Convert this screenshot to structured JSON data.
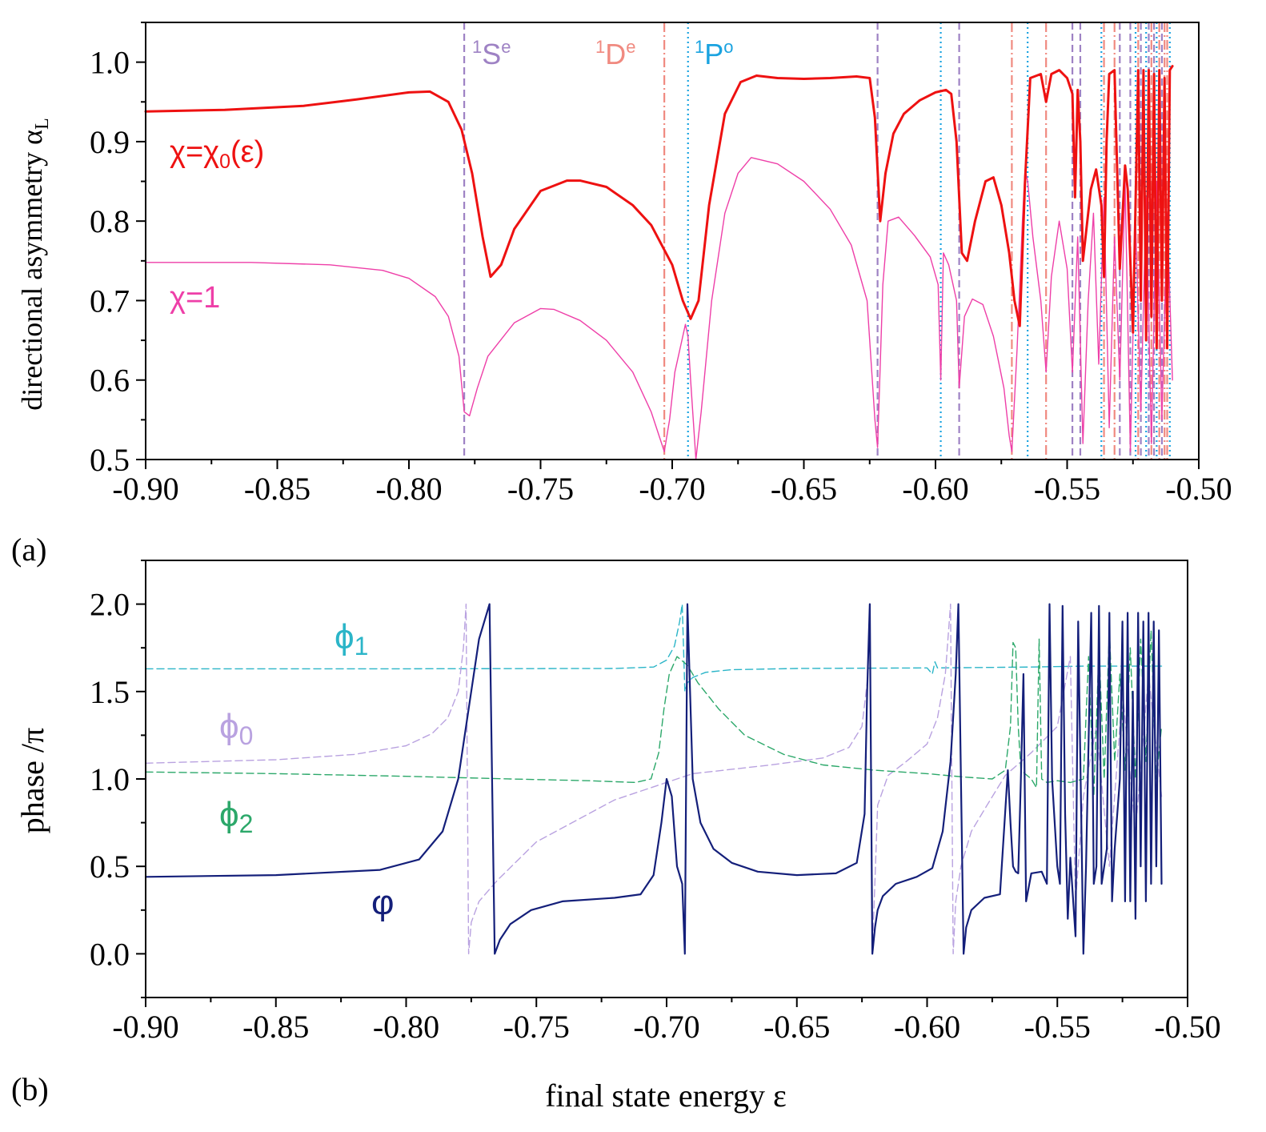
{
  "chart_data": [
    {
      "type": "line",
      "panel_label": "(a)",
      "ylabel": "directional asymmetry α",
      "ylabel_sub": "L",
      "xlabel": "",
      "xlim": [
        -0.9,
        -0.5
      ],
      "ylim": [
        0.5,
        1.05
      ],
      "xticks": [
        "-0.90",
        "-0.85",
        "-0.80",
        "-0.75",
        "-0.70",
        "-0.65",
        "-0.60",
        "-0.55",
        "-0.50"
      ],
      "yticks": [
        "0.5",
        "0.6",
        "0.7",
        "0.8",
        "0.9",
        "1.0"
      ],
      "xtick_values": [
        -0.9,
        -0.85,
        -0.8,
        -0.75,
        -0.7,
        -0.65,
        -0.6,
        -0.55,
        -0.5
      ],
      "ytick_values": [
        0.5,
        0.6,
        0.7,
        0.8,
        0.9,
        1.0
      ],
      "state_labels": [
        {
          "text": "S",
          "sup_left": "1",
          "sup_right": "e",
          "color": "#9e82c4"
        },
        {
          "text": "D",
          "sup_left": "1",
          "sup_right": "e",
          "color": "#f08a80"
        },
        {
          "text": "P",
          "sup_left": "1",
          "sup_right": "o",
          "color": "#1aa3e0"
        }
      ],
      "resonance_lines": {
        "S": {
          "color": "#9e82c4",
          "dash": "dashed",
          "x": [
            -0.779,
            -0.622,
            -0.591,
            -0.548,
            -0.545,
            -0.53,
            -0.526,
            -0.522,
            -0.519,
            -0.517,
            -0.514
          ]
        },
        "D": {
          "color": "#f08a80",
          "dash": "dashdot",
          "x": [
            -0.703,
            -0.571,
            -0.558,
            -0.536,
            -0.532,
            -0.523,
            -0.518,
            -0.515,
            -0.513,
            -0.512
          ]
        },
        "P": {
          "color": "#1aa3e0",
          "dash": "dotted",
          "x": [
            -0.694,
            -0.598,
            -0.565,
            -0.537,
            -0.524,
            -0.52,
            -0.516,
            -0.511
          ]
        }
      },
      "series": [
        {
          "name": "χ=χ₀(ε)",
          "label_text": "χ=χ",
          "label_sub": "0",
          "label_tail": "(ε)",
          "color": "#ee1111",
          "width": 3,
          "x": [
            -0.9,
            -0.87,
            -0.84,
            -0.82,
            -0.8,
            -0.792,
            -0.785,
            -0.78,
            -0.776,
            -0.772,
            -0.769,
            -0.765,
            -0.76,
            -0.75,
            -0.74,
            -0.735,
            -0.725,
            -0.715,
            -0.708,
            -0.7,
            -0.696,
            -0.693,
            -0.69,
            -0.686,
            -0.68,
            -0.674,
            -0.668,
            -0.66,
            -0.65,
            -0.64,
            -0.63,
            -0.625,
            -0.623,
            -0.621,
            -0.619,
            -0.616,
            -0.612,
            -0.606,
            -0.6,
            -0.596,
            -0.594,
            -0.592,
            -0.59,
            -0.588,
            -0.585,
            -0.581,
            -0.578,
            -0.575,
            -0.572,
            -0.57,
            -0.568,
            -0.566,
            -0.564,
            -0.56,
            -0.558,
            -0.556,
            -0.553,
            -0.55,
            -0.548,
            -0.547,
            -0.546,
            -0.545,
            -0.544,
            -0.541,
            -0.539,
            -0.537,
            -0.536,
            -0.535,
            -0.534,
            -0.532,
            -0.53,
            -0.528,
            -0.527,
            -0.525,
            -0.523,
            -0.522,
            -0.521,
            -0.52,
            -0.519,
            -0.518,
            -0.517,
            -0.516,
            -0.515,
            -0.514,
            -0.513,
            -0.512,
            -0.511,
            -0.51
          ],
          "values": [
            0.938,
            0.94,
            0.945,
            0.953,
            0.962,
            0.963,
            0.95,
            0.915,
            0.86,
            0.78,
            0.73,
            0.745,
            0.79,
            0.838,
            0.851,
            0.851,
            0.843,
            0.82,
            0.795,
            0.745,
            0.7,
            0.677,
            0.7,
            0.82,
            0.935,
            0.975,
            0.983,
            0.98,
            0.979,
            0.98,
            0.982,
            0.98,
            0.93,
            0.8,
            0.86,
            0.91,
            0.935,
            0.952,
            0.962,
            0.965,
            0.96,
            0.9,
            0.76,
            0.75,
            0.8,
            0.85,
            0.855,
            0.82,
            0.76,
            0.7,
            0.668,
            0.85,
            0.98,
            0.985,
            0.95,
            0.985,
            0.99,
            0.98,
            0.96,
            0.83,
            0.965,
            0.9,
            0.75,
            0.84,
            0.865,
            0.82,
            0.73,
            0.9,
            0.985,
            0.99,
            0.74,
            0.87,
            0.84,
            0.66,
            0.99,
            0.7,
            0.99,
            0.65,
            0.99,
            0.68,
            0.985,
            0.64,
            0.99,
            0.7,
            0.98,
            0.64,
            0.99,
            0.995
          ]
        },
        {
          "name": "χ=1",
          "label_text": "χ=1",
          "color": "#ee3fa8",
          "width": 1.4,
          "x": [
            -0.9,
            -0.86,
            -0.83,
            -0.81,
            -0.8,
            -0.79,
            -0.785,
            -0.781,
            -0.779,
            -0.777,
            -0.774,
            -0.77,
            -0.76,
            -0.75,
            -0.745,
            -0.735,
            -0.725,
            -0.715,
            -0.708,
            -0.703,
            -0.701,
            -0.699,
            -0.697,
            -0.695,
            -0.694,
            -0.693,
            -0.691,
            -0.689,
            -0.685,
            -0.68,
            -0.675,
            -0.67,
            -0.66,
            -0.65,
            -0.64,
            -0.632,
            -0.626,
            -0.623,
            -0.622,
            -0.62,
            -0.618,
            -0.614,
            -0.608,
            -0.602,
            -0.599,
            -0.598,
            -0.597,
            -0.595,
            -0.592,
            -0.591,
            -0.589,
            -0.586,
            -0.582,
            -0.578,
            -0.574,
            -0.572,
            -0.571,
            -0.569,
            -0.567,
            -0.566,
            -0.565,
            -0.563,
            -0.56,
            -0.558,
            -0.556,
            -0.553,
            -0.55,
            -0.548,
            -0.546,
            -0.544,
            -0.542,
            -0.54,
            -0.538,
            -0.536,
            -0.534,
            -0.532,
            -0.53,
            -0.528,
            -0.526,
            -0.524,
            -0.522,
            -0.52,
            -0.518,
            -0.516,
            -0.514,
            -0.512,
            -0.51
          ],
          "values": [
            0.748,
            0.748,
            0.745,
            0.738,
            0.728,
            0.705,
            0.68,
            0.63,
            0.56,
            0.555,
            0.59,
            0.63,
            0.672,
            0.69,
            0.689,
            0.675,
            0.65,
            0.61,
            0.56,
            0.51,
            0.55,
            0.61,
            0.64,
            0.67,
            0.655,
            0.6,
            0.5,
            0.56,
            0.7,
            0.81,
            0.86,
            0.88,
            0.872,
            0.85,
            0.815,
            0.77,
            0.7,
            0.55,
            0.515,
            0.72,
            0.8,
            0.805,
            0.782,
            0.755,
            0.72,
            0.6,
            0.76,
            0.745,
            0.7,
            0.59,
            0.68,
            0.702,
            0.695,
            0.655,
            0.59,
            0.53,
            0.51,
            0.64,
            0.8,
            0.865,
            0.85,
            0.78,
            0.7,
            0.61,
            0.73,
            0.8,
            0.74,
            0.61,
            0.78,
            0.52,
            0.7,
            0.81,
            0.62,
            0.83,
            0.54,
            0.78,
            0.6,
            0.85,
            0.51,
            0.8,
            0.56,
            0.83,
            0.52,
            0.85,
            0.55,
            0.81,
            0.6
          ]
        }
      ]
    },
    {
      "type": "line",
      "panel_label": "(b)",
      "ylabel": "phase /π",
      "xlabel": "final state energy ε",
      "xlim": [
        -0.9,
        -0.5
      ],
      "ylim": [
        -0.25,
        2.25
      ],
      "xticks": [
        "-0.90",
        "-0.85",
        "-0.80",
        "-0.75",
        "-0.70",
        "-0.65",
        "-0.60",
        "-0.55",
        "-0.50"
      ],
      "yticks": [
        "0.0",
        "0.5",
        "1.0",
        "1.5",
        "2.0"
      ],
      "xtick_values": [
        -0.9,
        -0.85,
        -0.8,
        -0.75,
        -0.7,
        -0.65,
        -0.6,
        -0.55,
        -0.5
      ],
      "ytick_values": [
        0.0,
        0.5,
        1.0,
        1.5,
        2.0
      ],
      "series": [
        {
          "name": "ϕ₁",
          "label_text": "ϕ",
          "label_sub": "1",
          "color": "#2bb5c8",
          "width": 1.4,
          "dash": "dashed",
          "x": [
            -0.9,
            -0.8,
            -0.72,
            -0.705,
            -0.7,
            -0.697,
            -0.695,
            -0.694,
            -0.693,
            -0.692,
            -0.69,
            -0.685,
            -0.675,
            -0.65,
            -0.6,
            -0.598,
            -0.597,
            -0.596,
            -0.56,
            -0.54,
            -0.52,
            -0.51
          ],
          "values": [
            1.63,
            1.63,
            1.632,
            1.64,
            1.68,
            1.76,
            1.9,
            2.0,
            1.5,
            1.55,
            1.58,
            1.61,
            1.625,
            1.632,
            1.635,
            1.6,
            1.67,
            1.635,
            1.64,
            1.645,
            1.645,
            1.645
          ]
        },
        {
          "name": "ϕ₀",
          "label_text": "ϕ",
          "label_sub": "0",
          "color": "#b9a2e0",
          "width": 1.4,
          "dash": "dashed",
          "x": [
            -0.9,
            -0.85,
            -0.82,
            -0.8,
            -0.79,
            -0.784,
            -0.78,
            -0.778,
            -0.777,
            -0.776,
            -0.775,
            -0.772,
            -0.765,
            -0.75,
            -0.72,
            -0.69,
            -0.66,
            -0.64,
            -0.63,
            -0.625,
            -0.623,
            -0.622,
            -0.621,
            -0.619,
            -0.615,
            -0.608,
            -0.6,
            -0.596,
            -0.593,
            -0.591,
            -0.59,
            -0.589,
            -0.587,
            -0.583,
            -0.577,
            -0.57,
            -0.56,
            -0.55,
            -0.545,
            -0.543,
            -0.54,
            -0.535,
            -0.53,
            -0.525,
            -0.52,
            -0.515,
            -0.51
          ],
          "values": [
            1.09,
            1.11,
            1.14,
            1.19,
            1.26,
            1.35,
            1.5,
            1.75,
            2.0,
            0.0,
            0.18,
            0.3,
            0.42,
            0.64,
            0.88,
            1.03,
            1.08,
            1.12,
            1.18,
            1.3,
            1.55,
            1.95,
            0.0,
            0.85,
            1.02,
            1.1,
            1.2,
            1.35,
            1.6,
            2.0,
            0.0,
            0.3,
            0.5,
            0.7,
            0.85,
            1.02,
            1.15,
            1.3,
            1.7,
            0.3,
            0.9,
            1.3,
            0.5,
            1.5,
            0.7,
            1.6,
            0.9
          ]
        },
        {
          "name": "ϕ₂",
          "label_text": "ϕ",
          "label_sub": "2",
          "color": "#2ca86a",
          "width": 1.4,
          "dash": "dashed",
          "x": [
            -0.9,
            -0.85,
            -0.8,
            -0.76,
            -0.73,
            -0.712,
            -0.706,
            -0.703,
            -0.701,
            -0.699,
            -0.696,
            -0.692,
            -0.688,
            -0.68,
            -0.67,
            -0.655,
            -0.64,
            -0.62,
            -0.6,
            -0.585,
            -0.575,
            -0.57,
            -0.568,
            -0.567,
            -0.566,
            -0.565,
            -0.564,
            -0.56,
            -0.558,
            -0.557,
            -0.556,
            -0.554,
            -0.55,
            -0.545,
            -0.54,
            -0.538,
            -0.536,
            -0.534,
            -0.532,
            -0.53,
            -0.528,
            -0.526,
            -0.524,
            -0.522,
            -0.52,
            -0.518,
            -0.516,
            -0.514,
            -0.512,
            -0.51
          ],
          "values": [
            1.04,
            1.03,
            1.015,
            1.0,
            0.99,
            0.98,
            1.0,
            1.15,
            1.4,
            1.6,
            1.7,
            1.65,
            1.55,
            1.4,
            1.25,
            1.14,
            1.08,
            1.05,
            1.03,
            1.01,
            1.0,
            1.05,
            1.3,
            1.78,
            1.75,
            1.3,
            1.05,
            1.0,
            0.95,
            1.8,
            1.0,
            0.98,
            0.99,
            0.98,
            1.0,
            1.7,
            0.9,
            1.75,
            1.0,
            1.85,
            1.1,
            1.6,
            1.05,
            1.75,
            1.0,
            1.8,
            1.1,
            1.85,
            1.0,
            1.3
          ]
        },
        {
          "name": "φ",
          "label_text": "φ",
          "color": "#141f7a",
          "width": 2.2,
          "x": [
            -0.9,
            -0.85,
            -0.81,
            -0.795,
            -0.786,
            -0.78,
            -0.776,
            -0.772,
            -0.768,
            -0.767,
            -0.766,
            -0.764,
            -0.76,
            -0.752,
            -0.74,
            -0.72,
            -0.71,
            -0.705,
            -0.702,
            -0.7,
            -0.698,
            -0.696,
            -0.694,
            -0.693,
            -0.692,
            -0.691,
            -0.69,
            -0.687,
            -0.682,
            -0.675,
            -0.665,
            -0.65,
            -0.635,
            -0.627,
            -0.624,
            -0.623,
            -0.622,
            -0.621,
            -0.62,
            -0.619,
            -0.617,
            -0.612,
            -0.604,
            -0.598,
            -0.594,
            -0.591,
            -0.589,
            -0.588,
            -0.587,
            -0.586,
            -0.585,
            -0.583,
            -0.578,
            -0.572,
            -0.569,
            -0.568,
            -0.567,
            -0.566,
            -0.565,
            -0.564,
            -0.563,
            -0.562,
            -0.56,
            -0.556,
            -0.554,
            -0.553,
            -0.552,
            -0.55,
            -0.549,
            -0.548,
            -0.547,
            -0.546,
            -0.545,
            -0.543,
            -0.542,
            -0.54,
            -0.539,
            -0.537,
            -0.536,
            -0.535,
            -0.534,
            -0.533,
            -0.531,
            -0.53,
            -0.529,
            -0.528,
            -0.526,
            -0.525,
            -0.524,
            -0.523,
            -0.522,
            -0.521,
            -0.52,
            -0.519,
            -0.518,
            -0.517,
            -0.516,
            -0.515,
            -0.514,
            -0.513,
            -0.512,
            -0.511,
            -0.51
          ],
          "values": [
            0.44,
            0.45,
            0.48,
            0.54,
            0.7,
            1.0,
            1.4,
            1.8,
            2.0,
            1.0,
            0.0,
            0.08,
            0.17,
            0.25,
            0.3,
            0.32,
            0.34,
            0.45,
            0.75,
            1.0,
            0.9,
            0.5,
            0.4,
            0.0,
            2.0,
            1.5,
            1.0,
            0.75,
            0.6,
            0.52,
            0.47,
            0.45,
            0.46,
            0.52,
            0.8,
            1.5,
            2.0,
            0.0,
            0.15,
            0.25,
            0.33,
            0.4,
            0.44,
            0.49,
            0.7,
            1.1,
            1.6,
            2.0,
            1.0,
            0.0,
            0.15,
            0.25,
            0.32,
            0.34,
            1.05,
            0.75,
            0.5,
            0.47,
            0.46,
            1.0,
            1.6,
            0.3,
            0.46,
            0.47,
            0.4,
            2.0,
            1.0,
            0.5,
            0.4,
            1.99,
            0.8,
            0.2,
            0.55,
            0.1,
            1.9,
            0.0,
            0.5,
            1.95,
            0.4,
            0.5,
            1.99,
            0.4,
            0.6,
            1.95,
            0.3,
            0.6,
            1.0,
            1.9,
            0.3,
            1.95,
            0.3,
            1.5,
            0.2,
            1.95,
            0.5,
            1.9,
            0.3,
            1.95,
            0.4,
            1.9,
            0.5,
            1.85,
            0.4
          ]
        }
      ]
    }
  ]
}
